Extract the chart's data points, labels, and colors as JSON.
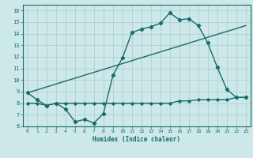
{
  "xlabel": "Humidex (Indice chaleur)",
  "ylabel": "",
  "xlim": [
    -0.5,
    23.5
  ],
  "ylim": [
    6,
    16.5
  ],
  "yticks": [
    6,
    7,
    8,
    9,
    10,
    11,
    12,
    13,
    14,
    15,
    16
  ],
  "xticks": [
    0,
    1,
    2,
    3,
    4,
    5,
    6,
    7,
    8,
    9,
    10,
    11,
    12,
    13,
    14,
    15,
    16,
    17,
    18,
    19,
    20,
    21,
    22,
    23
  ],
  "bg_color": "#cce8e8",
  "line_color": "#1a6b6b",
  "grid_color": "#aacccc",
  "line1_x": [
    0,
    1,
    2,
    3,
    4,
    5,
    6,
    7,
    8,
    9,
    10,
    11,
    12,
    13,
    14,
    15,
    16,
    17,
    18,
    19,
    20,
    21,
    22,
    23
  ],
  "line1_y": [
    8.9,
    8.3,
    7.8,
    8.0,
    7.5,
    6.4,
    6.6,
    6.3,
    7.1,
    10.4,
    11.9,
    14.1,
    14.4,
    14.6,
    14.9,
    15.8,
    15.2,
    15.3,
    14.7,
    13.2,
    11.1,
    9.2,
    8.5,
    8.5
  ],
  "line2_x": [
    0,
    23
  ],
  "line2_y": [
    8.9,
    14.7
  ],
  "line3_x": [
    0,
    1,
    2,
    3,
    4,
    5,
    6,
    7,
    8,
    9,
    10,
    11,
    12,
    13,
    14,
    15,
    16,
    17,
    18,
    19,
    20,
    21,
    22,
    23
  ],
  "line3_y": [
    8.0,
    8.0,
    7.8,
    8.0,
    8.0,
    8.0,
    8.0,
    8.0,
    8.0,
    8.0,
    8.0,
    8.0,
    8.0,
    8.0,
    8.0,
    8.0,
    8.2,
    8.2,
    8.3,
    8.3,
    8.3,
    8.3,
    8.5,
    8.5
  ]
}
